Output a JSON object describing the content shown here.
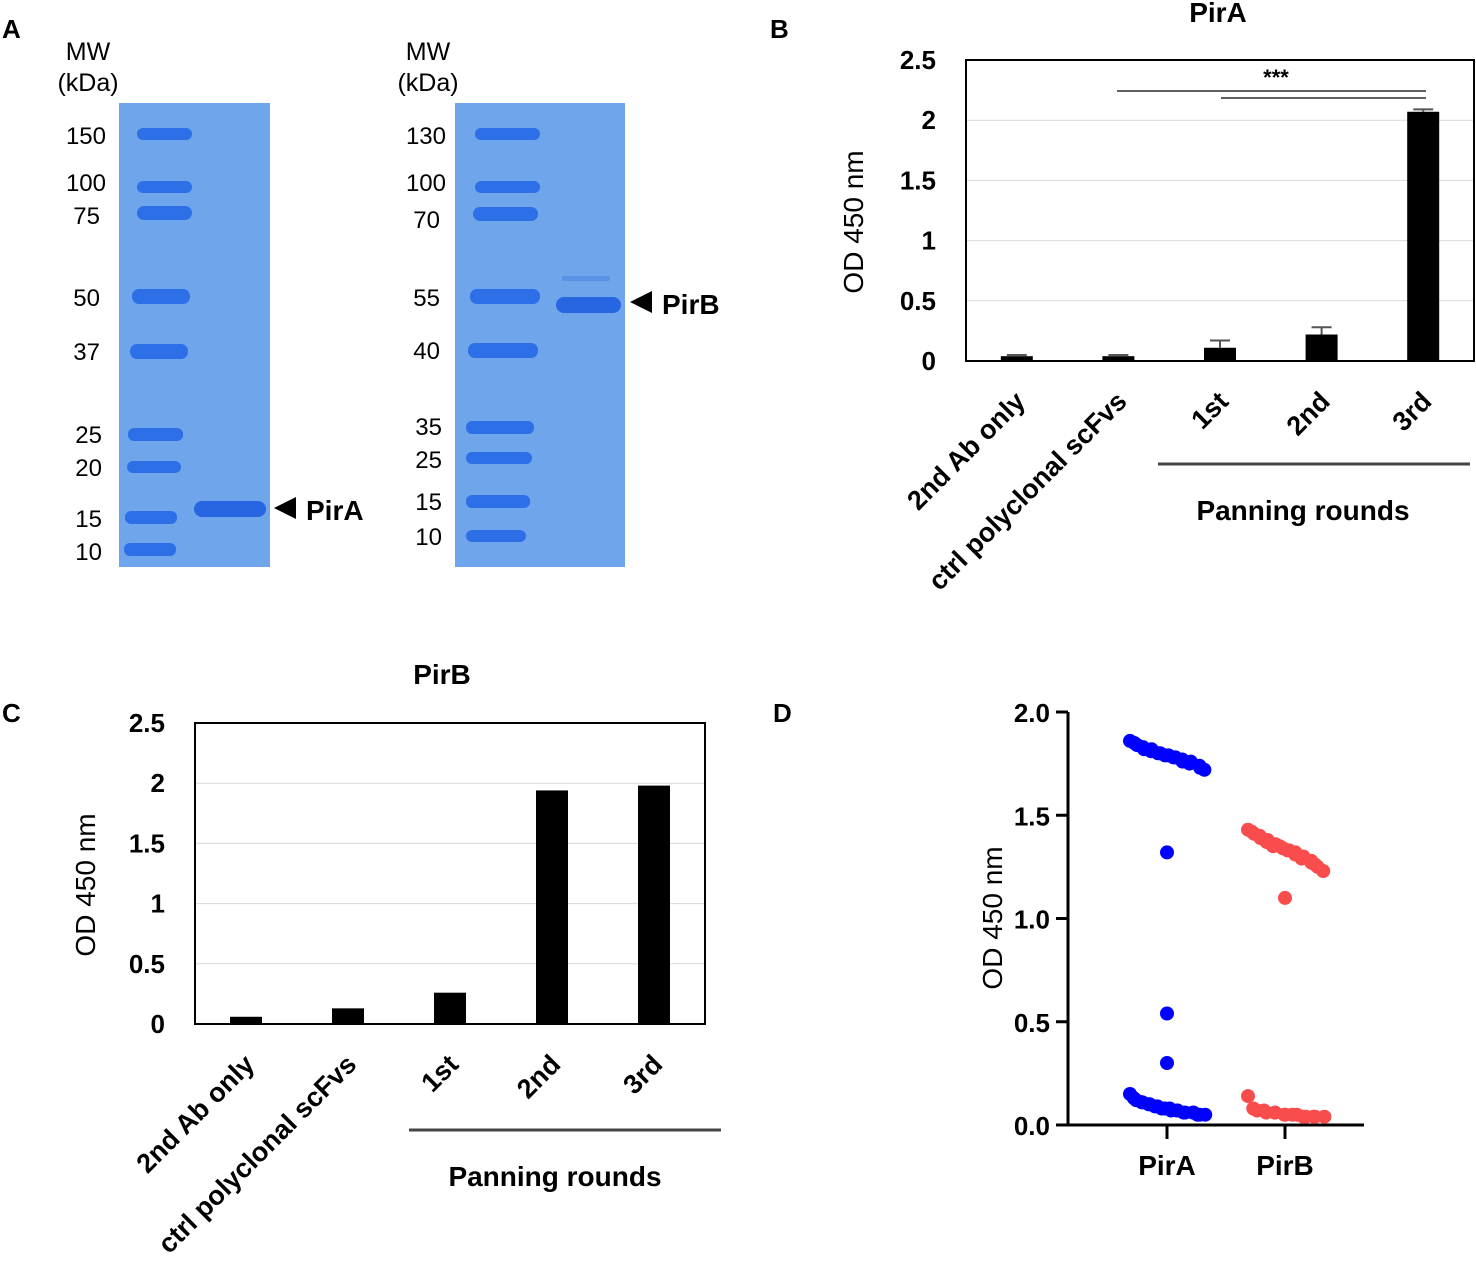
{
  "panels": {
    "a": "A",
    "b": "B",
    "c": "C",
    "d": "D"
  },
  "gels": [
    {
      "mw_header": [
        "MW",
        "(kDa)"
      ],
      "markers": [
        "150",
        "100",
        "75",
        "50",
        "37",
        "25",
        "20",
        "15",
        "10"
      ],
      "band_label": "PirA"
    },
    {
      "mw_header": [
        "MW",
        "(kDa)"
      ],
      "markers": [
        "130",
        "100",
        "70",
        "55",
        "40",
        "35",
        "25",
        "15",
        "10"
      ],
      "band_label": "PirB"
    }
  ],
  "colors": {
    "gel": "#6fa5ea",
    "ladder": "#2c6fe6",
    "band": "#2766e0",
    "bar": "#000000",
    "pira": "#0000ff",
    "pirb": "#f94c4c"
  },
  "chart_data": [
    {
      "panel": "B",
      "type": "bar",
      "title": "PirA",
      "ylabel": "OD 450 nm",
      "ylim": [
        0,
        2.5
      ],
      "yticks": [
        "0",
        "0.5",
        "1",
        "1.5",
        "2",
        "2.5"
      ],
      "categories": [
        "2nd Ab only",
        "ctrl polyclonal scFvs",
        "1st",
        "2nd",
        "3rd"
      ],
      "values": [
        0.04,
        0.04,
        0.11,
        0.22,
        2.07
      ],
      "errors": [
        0.01,
        0.01,
        0.06,
        0.06,
        0.02
      ],
      "group_label": "Panning rounds",
      "significance": "***",
      "grid": true
    },
    {
      "panel": "C",
      "type": "bar",
      "title": "PirB",
      "ylabel": "OD 450 nm",
      "ylim": [
        0,
        2.5
      ],
      "yticks": [
        "0",
        "0.5",
        "1",
        "1.5",
        "2",
        "2.5"
      ],
      "categories": [
        "2nd Ab only",
        "ctrl polyclonal scFvs",
        "1st",
        "2nd",
        "3rd"
      ],
      "values": [
        0.06,
        0.13,
        0.26,
        1.94,
        1.98
      ],
      "group_label": "Panning rounds",
      "grid": true
    },
    {
      "panel": "D",
      "type": "scatter",
      "ylabel": "OD 450 nm",
      "ylim": [
        0,
        2.0
      ],
      "yticks": [
        "0.0",
        "0.5",
        "1.0",
        "1.5",
        "2.0"
      ],
      "categories": [
        "PirA",
        "PirB"
      ],
      "series": [
        {
          "name": "PirA",
          "values": [
            1.86,
            1.85,
            1.84,
            1.83,
            1.82,
            1.82,
            1.81,
            1.8,
            1.8,
            1.79,
            1.79,
            1.78,
            1.78,
            1.77,
            1.76,
            1.76,
            1.75,
            1.74,
            1.73,
            1.72,
            1.32,
            0.54,
            0.3,
            0.15,
            0.13,
            0.12,
            0.11,
            0.11,
            0.1,
            0.1,
            0.09,
            0.09,
            0.08,
            0.08,
            0.08,
            0.07,
            0.07,
            0.07,
            0.06,
            0.06,
            0.06,
            0.06,
            0.05,
            0.05,
            0.05
          ]
        },
        {
          "name": "PirB",
          "values": [
            1.43,
            1.42,
            1.41,
            1.4,
            1.39,
            1.38,
            1.37,
            1.36,
            1.35,
            1.35,
            1.34,
            1.33,
            1.33,
            1.32,
            1.31,
            1.3,
            1.29,
            1.28,
            1.27,
            1.26,
            1.25,
            1.23,
            1.1,
            0.14,
            0.08,
            0.07,
            0.07,
            0.06,
            0.06,
            0.06,
            0.05,
            0.05,
            0.05,
            0.05,
            0.04,
            0.04,
            0.04,
            0.04,
            0.04
          ]
        }
      ]
    }
  ]
}
